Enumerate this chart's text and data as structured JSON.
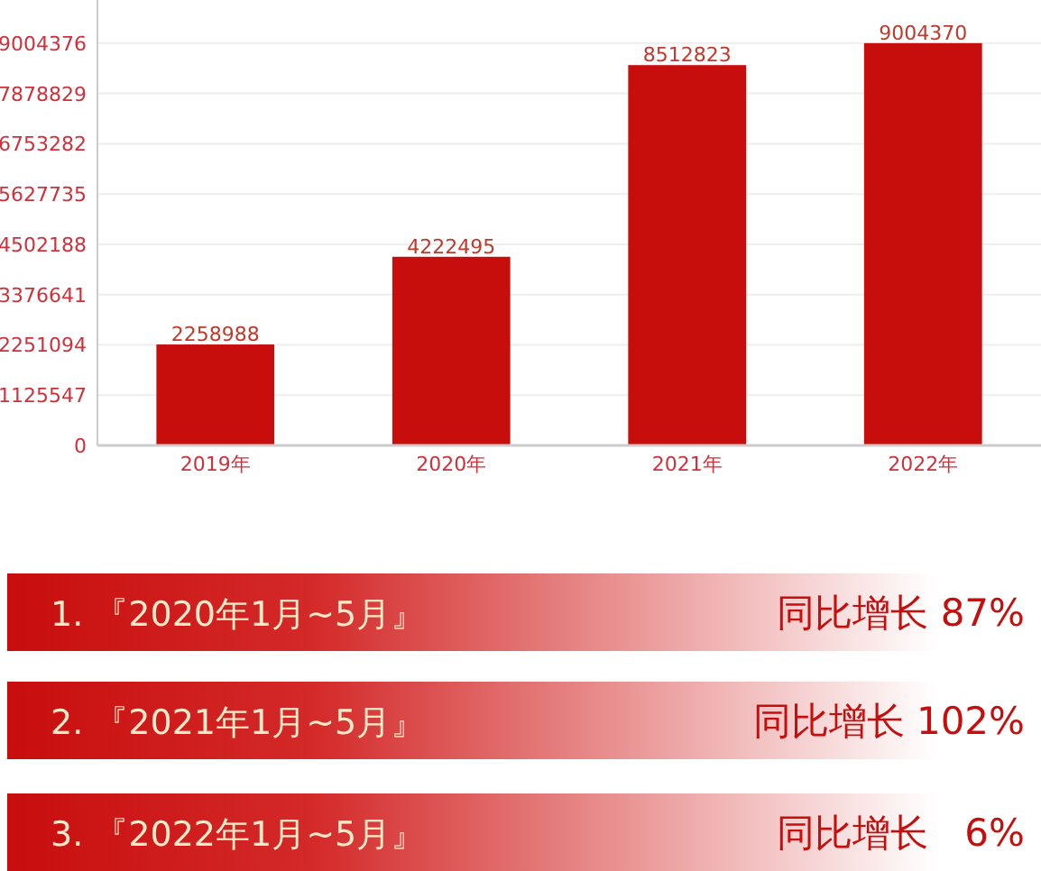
{
  "chart_data": [
    {
      "type": "bar",
      "categories": [
        "2019年",
        "2020年",
        "2021年",
        "2022年"
      ],
      "values": [
        2258988,
        4222495,
        8512823,
        9004370
      ],
      "color": "#c80d0d",
      "data_labels": true,
      "grid": "y",
      "ylim": [
        0,
        9970000
      ],
      "yticks": [
        0,
        1125547,
        2251094,
        3376641,
        4502188,
        5627735,
        6753282,
        7878829,
        9004376
      ]
    },
    {
      "type": "other",
      "annotations": [
        "1. 『2020年1月~5月』",
        "同比增长 87%",
        "2. 『2021年1月~5月』",
        "同比增长 102%",
        "3. 『2022年1月~5月』",
        "同比增长   6%"
      ]
    }
  ]
}
